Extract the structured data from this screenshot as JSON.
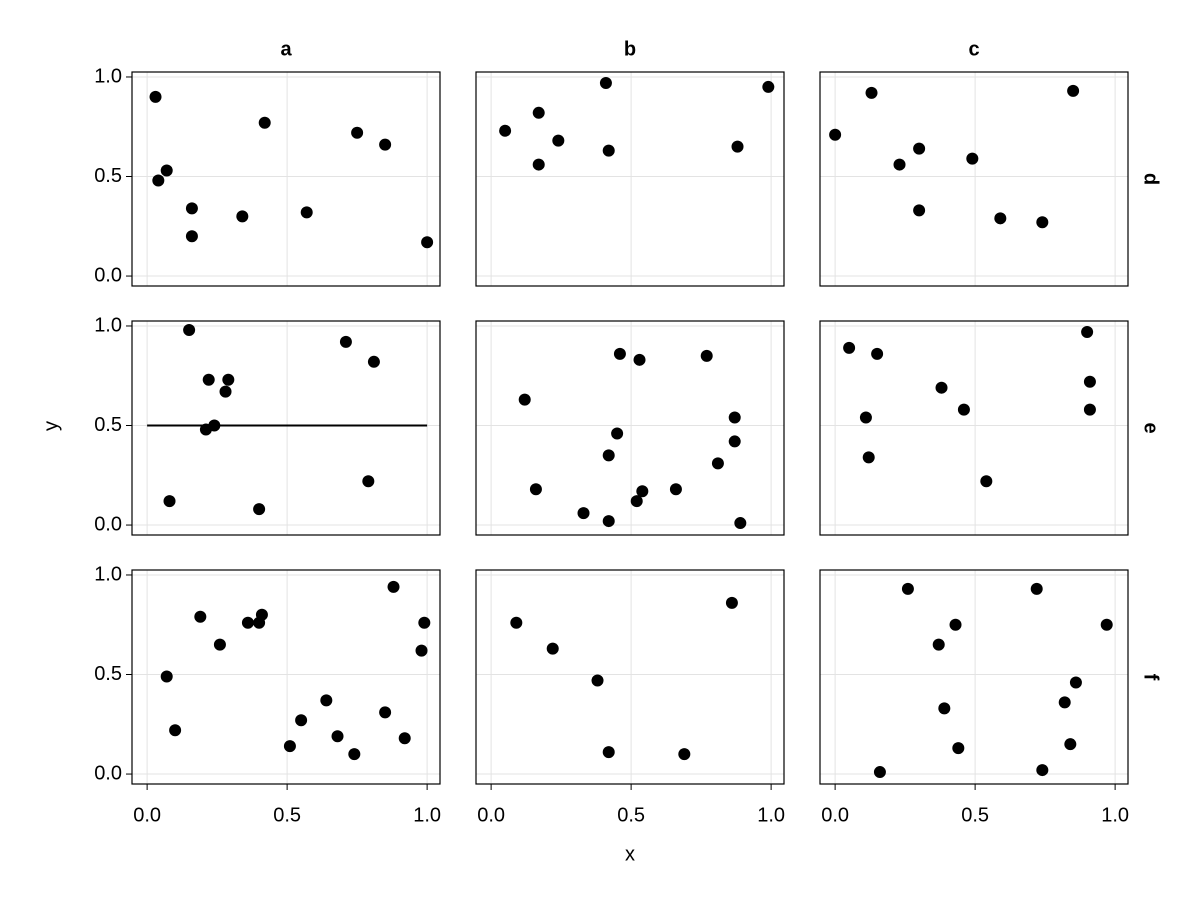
{
  "chart_data": {
    "type": "scatter",
    "xlabel": "x",
    "ylabel": "y",
    "col_labels": [
      "a",
      "b",
      "c"
    ],
    "row_labels": [
      "d",
      "e",
      "f"
    ],
    "xlim": [
      -0.054,
      1.046
    ],
    "ylim": [
      -0.05,
      1.025
    ],
    "xticks": [
      {
        "value": 0,
        "label": "0.0"
      },
      0.5,
      {
        "value": 1,
        "label": "1.0"
      }
    ],
    "yticks": [
      {
        "value": 0,
        "label": "0.0"
      },
      0.5,
      {
        "value": 1,
        "label": "1.0"
      }
    ],
    "grid": true,
    "color": "#000000",
    "panels": [
      [
        {
          "x": [
            0.03,
            0.04,
            0.07,
            0.16,
            0.16,
            0.34,
            0.42,
            0.57,
            0.75,
            0.85,
            1.0
          ],
          "y": [
            0.9,
            0.48,
            0.53,
            0.34,
            0.2,
            0.3,
            0.77,
            0.32,
            0.72,
            0.66,
            0.17
          ]
        },
        {
          "x": [
            0.05,
            0.17,
            0.17,
            0.24,
            0.41,
            0.42,
            0.88,
            0.99
          ],
          "y": [
            0.73,
            0.82,
            0.56,
            0.68,
            0.97,
            0.63,
            0.65,
            0.95
          ]
        },
        {
          "x": [
            0.0,
            0.13,
            0.23,
            0.3,
            0.3,
            0.49,
            0.59,
            0.74,
            0.85
          ],
          "y": [
            0.71,
            0.92,
            0.56,
            0.64,
            0.33,
            0.59,
            0.29,
            0.27,
            0.93
          ]
        }
      ],
      [
        {
          "x": [
            0.15,
            0.08,
            0.22,
            0.29,
            0.28,
            0.21,
            0.24,
            0.4,
            0.71,
            0.81,
            0.79
          ],
          "y": [
            0.98,
            0.12,
            0.73,
            0.73,
            0.67,
            0.48,
            0.5,
            0.08,
            0.92,
            0.82,
            0.22
          ],
          "line": {
            "x": [
              0,
              1
            ],
            "y": [
              0.5,
              0.5
            ]
          }
        },
        {
          "x": [
            0.12,
            0.16,
            0.33,
            0.42,
            0.45,
            0.46,
            0.42,
            0.52,
            0.54,
            0.53,
            0.66,
            0.77,
            0.81,
            0.87,
            0.87,
            0.89
          ],
          "y": [
            0.63,
            0.18,
            0.06,
            0.35,
            0.46,
            0.86,
            0.02,
            0.12,
            0.17,
            0.83,
            0.18,
            0.85,
            0.31,
            0.54,
            0.42,
            0.01
          ]
        },
        {
          "x": [
            0.05,
            0.15,
            0.11,
            0.12,
            0.38,
            0.46,
            0.54,
            0.9,
            0.91,
            0.91
          ],
          "y": [
            0.89,
            0.86,
            0.54,
            0.34,
            0.69,
            0.58,
            0.22,
            0.97,
            0.72,
            0.58
          ]
        }
      ],
      [
        {
          "x": [
            0.07,
            0.1,
            0.19,
            0.26,
            0.36,
            0.4,
            0.41,
            0.51,
            0.55,
            0.64,
            0.68,
            0.74,
            0.85,
            0.88,
            0.92,
            0.98,
            0.99
          ],
          "y": [
            0.49,
            0.22,
            0.79,
            0.65,
            0.76,
            0.76,
            0.8,
            0.14,
            0.27,
            0.37,
            0.19,
            0.1,
            0.31,
            0.94,
            0.18,
            0.62,
            0.76
          ]
        },
        {
          "x": [
            0.09,
            0.22,
            0.38,
            0.42,
            0.69,
            0.86
          ],
          "y": [
            0.76,
            0.63,
            0.47,
            0.11,
            0.1,
            0.86
          ]
        },
        {
          "x": [
            0.26,
            0.37,
            0.43,
            0.39,
            0.44,
            0.16,
            0.72,
            0.97,
            0.86,
            0.82,
            0.84,
            0.74
          ],
          "y": [
            0.93,
            0.65,
            0.75,
            0.33,
            0.13,
            0.01,
            0.93,
            0.75,
            0.46,
            0.36,
            0.15,
            0.02
          ]
        }
      ]
    ]
  }
}
